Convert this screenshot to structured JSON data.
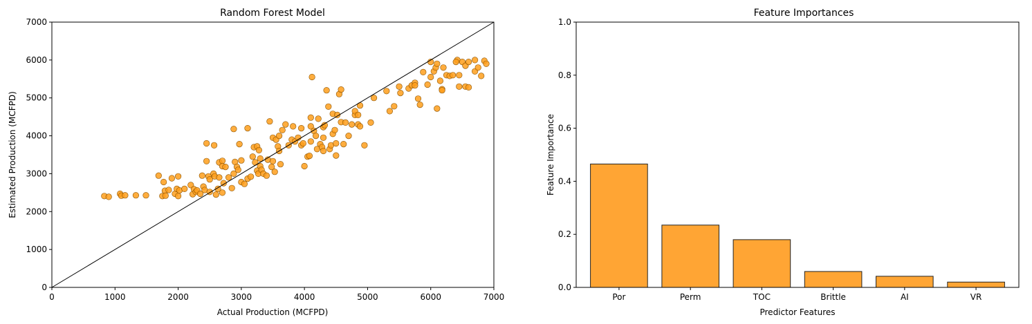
{
  "chart_data": [
    {
      "type": "scatter",
      "title": "Random Forest Model",
      "xlabel": "Actual Production (MCFPD)",
      "ylabel": "Estimated Production (MCFPD)",
      "xlim": [
        0,
        7000
      ],
      "ylim": [
        0,
        7000
      ],
      "xticks": [
        0,
        1000,
        2000,
        3000,
        4000,
        5000,
        6000,
        7000
      ],
      "yticks": [
        0,
        1000,
        2000,
        3000,
        4000,
        5000,
        6000,
        7000
      ],
      "grid": false,
      "reference_line": {
        "x": [
          0,
          7000
        ],
        "y": [
          0,
          7000
        ],
        "color": "#000000"
      },
      "marker_color": "#ff9f1c",
      "marker_edge": "#8a5200",
      "points": [
        [
          830,
          2410
        ],
        [
          900,
          2390
        ],
        [
          1080,
          2470
        ],
        [
          1100,
          2420
        ],
        [
          1160,
          2430
        ],
        [
          1330,
          2430
        ],
        [
          1490,
          2430
        ],
        [
          1690,
          2950
        ],
        [
          1750,
          2410
        ],
        [
          1770,
          2780
        ],
        [
          1790,
          2550
        ],
        [
          1800,
          2420
        ],
        [
          1850,
          2570
        ],
        [
          1900,
          2880
        ],
        [
          1950,
          2470
        ],
        [
          1980,
          2600
        ],
        [
          2000,
          2410
        ],
        [
          2000,
          2930
        ],
        [
          2020,
          2560
        ],
        [
          2100,
          2600
        ],
        [
          2200,
          2700
        ],
        [
          2230,
          2460
        ],
        [
          2250,
          2590
        ],
        [
          2280,
          2520
        ],
        [
          2300,
          2560
        ],
        [
          2350,
          2470
        ],
        [
          2380,
          2950
        ],
        [
          2400,
          2660
        ],
        [
          2420,
          2570
        ],
        [
          2450,
          3330
        ],
        [
          2450,
          3800
        ],
        [
          2480,
          2930
        ],
        [
          2500,
          2850
        ],
        [
          2500,
          2520
        ],
        [
          2560,
          3000
        ],
        [
          2570,
          3750
        ],
        [
          2580,
          2930
        ],
        [
          2600,
          2450
        ],
        [
          2630,
          2600
        ],
        [
          2650,
          2900
        ],
        [
          2650,
          3300
        ],
        [
          2700,
          2500
        ],
        [
          2700,
          3340
        ],
        [
          2700,
          3200
        ],
        [
          2720,
          2750
        ],
        [
          2750,
          3180
        ],
        [
          2800,
          2900
        ],
        [
          2850,
          2620
        ],
        [
          2880,
          4180
        ],
        [
          2880,
          3000
        ],
        [
          2900,
          3310
        ],
        [
          2930,
          3180
        ],
        [
          2950,
          3100
        ],
        [
          2970,
          3780
        ],
        [
          3000,
          3350
        ],
        [
          3000,
          2780
        ],
        [
          3050,
          2730
        ],
        [
          3100,
          2870
        ],
        [
          3100,
          4200
        ],
        [
          3150,
          2920
        ],
        [
          3180,
          3450
        ],
        [
          3200,
          3700
        ],
        [
          3220,
          3300
        ],
        [
          3250,
          3080
        ],
        [
          3250,
          3720
        ],
        [
          3270,
          3000
        ],
        [
          3280,
          3620
        ],
        [
          3300,
          3400
        ],
        [
          3300,
          3200
        ],
        [
          3320,
          3100
        ],
        [
          3350,
          3000
        ],
        [
          3400,
          2950
        ],
        [
          3420,
          3370
        ],
        [
          3450,
          4380
        ],
        [
          3480,
          3180
        ],
        [
          3500,
          3950
        ],
        [
          3500,
          3330
        ],
        [
          3530,
          3050
        ],
        [
          3550,
          3900
        ],
        [
          3580,
          3720
        ],
        [
          3600,
          3600
        ],
        [
          3600,
          4000
        ],
        [
          3620,
          3250
        ],
        [
          3650,
          4150
        ],
        [
          3700,
          4300
        ],
        [
          3750,
          3750
        ],
        [
          3800,
          3900
        ],
        [
          3820,
          4250
        ],
        [
          3850,
          3850
        ],
        [
          3900,
          3950
        ],
        [
          3950,
          4200
        ],
        [
          3950,
          3750
        ],
        [
          3980,
          3800
        ],
        [
          4000,
          3200
        ],
        [
          4050,
          3450
        ],
        [
          4080,
          3470
        ],
        [
          4100,
          4480
        ],
        [
          4100,
          4250
        ],
        [
          4100,
          3850
        ],
        [
          4120,
          5550
        ],
        [
          4150,
          4130
        ],
        [
          4180,
          4000
        ],
        [
          4200,
          3650
        ],
        [
          4220,
          4450
        ],
        [
          4250,
          3780
        ],
        [
          4280,
          3700
        ],
        [
          4300,
          4230
        ],
        [
          4300,
          3950
        ],
        [
          4300,
          3600
        ],
        [
          4320,
          4280
        ],
        [
          4350,
          5200
        ],
        [
          4380,
          4770
        ],
        [
          4400,
          3650
        ],
        [
          4420,
          3750
        ],
        [
          4450,
          4580
        ],
        [
          4450,
          4050
        ],
        [
          4480,
          4150
        ],
        [
          4500,
          3800
        ],
        [
          4500,
          3480
        ],
        [
          4520,
          4550
        ],
        [
          4550,
          5100
        ],
        [
          4580,
          5220
        ],
        [
          4580,
          4360
        ],
        [
          4620,
          3780
        ],
        [
          4650,
          4350
        ],
        [
          4700,
          4000
        ],
        [
          4750,
          4300
        ],
        [
          4800,
          4550
        ],
        [
          4800,
          4650
        ],
        [
          4850,
          4550
        ],
        [
          4850,
          4300
        ],
        [
          4880,
          4800
        ],
        [
          4880,
          4250
        ],
        [
          4950,
          3750
        ],
        [
          5050,
          4350
        ],
        [
          5100,
          5000
        ],
        [
          5300,
          5180
        ],
        [
          5350,
          4650
        ],
        [
          5420,
          4780
        ],
        [
          5500,
          5300
        ],
        [
          5520,
          5130
        ],
        [
          5650,
          5250
        ],
        [
          5700,
          5330
        ],
        [
          5750,
          5400
        ],
        [
          5750,
          5330
        ],
        [
          5800,
          4980
        ],
        [
          5830,
          4820
        ],
        [
          5880,
          5680
        ],
        [
          5950,
          5350
        ],
        [
          6000,
          5950
        ],
        [
          6000,
          5550
        ],
        [
          6050,
          5700
        ],
        [
          6080,
          5800
        ],
        [
          6100,
          4720
        ],
        [
          6100,
          5900
        ],
        [
          6150,
          5450
        ],
        [
          6180,
          5230
        ],
        [
          6180,
          5200
        ],
        [
          6200,
          5800
        ],
        [
          6250,
          5600
        ],
        [
          6300,
          5580
        ],
        [
          6350,
          5600
        ],
        [
          6420,
          6000
        ],
        [
          6450,
          5300
        ],
        [
          6450,
          5600
        ],
        [
          6500,
          5950
        ],
        [
          6550,
          5850
        ],
        [
          6550,
          5300
        ],
        [
          6600,
          5950
        ],
        [
          6700,
          6000
        ],
        [
          6700,
          5700
        ],
        [
          6750,
          5800
        ],
        [
          6800,
          5580
        ],
        [
          6850,
          5980
        ],
        [
          6880,
          5900
        ],
        [
          6600,
          5280
        ],
        [
          6400,
          5950
        ]
      ]
    },
    {
      "type": "bar",
      "title": "Feature Importances",
      "xlabel": "Predictor Features",
      "ylabel": "Feature Importance",
      "categories": [
        "Por",
        "Perm",
        "TOC",
        "Brittle",
        "AI",
        "VR"
      ],
      "values": [
        0.465,
        0.235,
        0.18,
        0.06,
        0.042,
        0.02
      ],
      "ylim": [
        0,
        1
      ],
      "yticks": [
        0.0,
        0.2,
        0.4,
        0.6,
        0.8,
        1.0
      ],
      "ytick_labels": [
        "0.0",
        "0.2",
        "0.4",
        "0.6",
        "0.8",
        "1.0"
      ],
      "grid": false,
      "bar_color": "#ffa534",
      "bar_edge": "#222222"
    }
  ]
}
